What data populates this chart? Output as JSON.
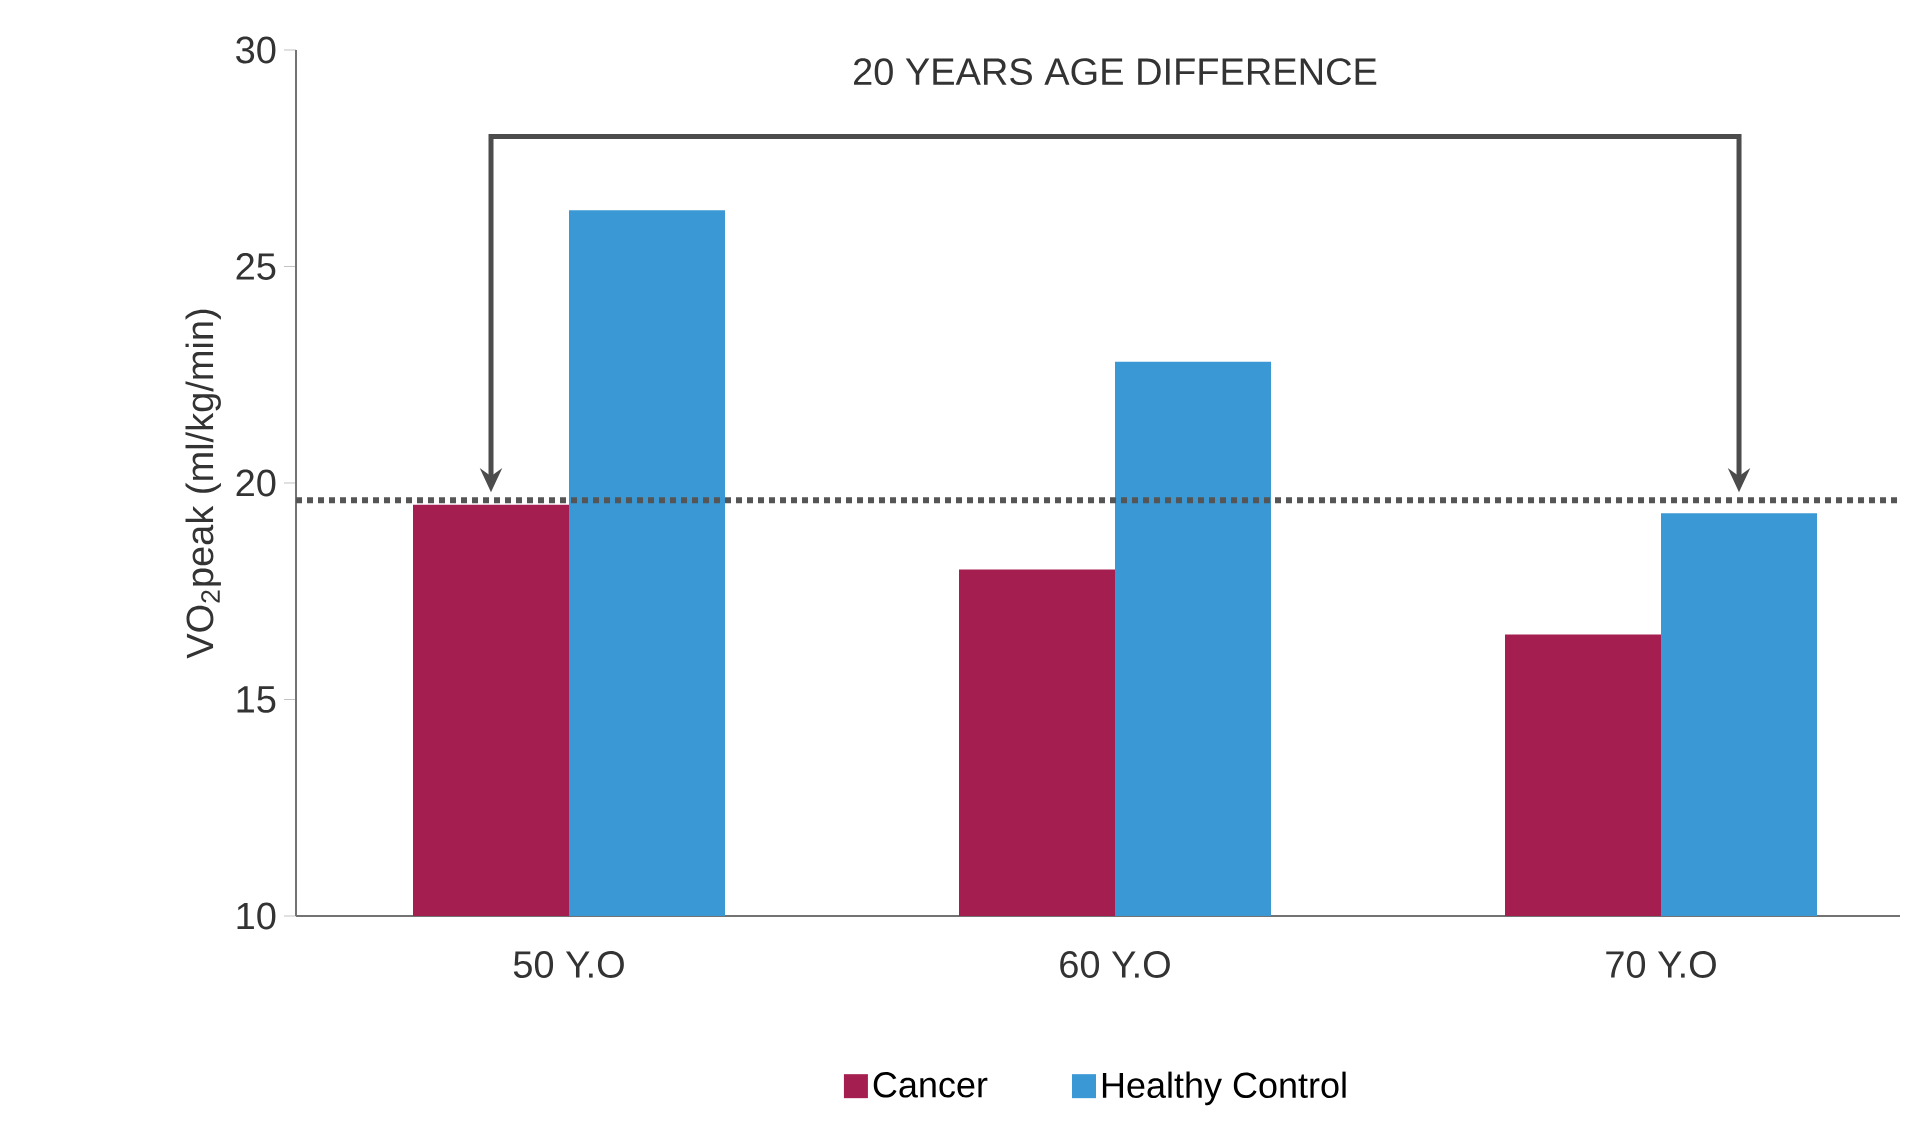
{
  "chart_data": {
    "type": "bar",
    "ylabel": "VO$_{2}$peak (ml/kg/min)",
    "categories": [
      "50 Y.O",
      "60 Y.O",
      "70 Y.O"
    ],
    "series": [
      {
        "name": "Cancer",
        "color": "#a51e50",
        "values": [
          19.5,
          18.0,
          16.5
        ]
      },
      {
        "name": "Healthy Control",
        "color": "#3a98d5",
        "values": [
          26.3,
          22.8,
          19.3
        ]
      }
    ],
    "ylim": [
      10,
      30
    ],
    "yticks": [
      10,
      15,
      20,
      25,
      30
    ],
    "grid": false,
    "legend": "bottom",
    "ref_lines": [
      {
        "axis": "y",
        "value": 19.6,
        "color": "#555555",
        "line_style": "dotted"
      }
    ],
    "annotations": [
      "20 YEARS AGE DIFFERENCE"
    ]
  }
}
